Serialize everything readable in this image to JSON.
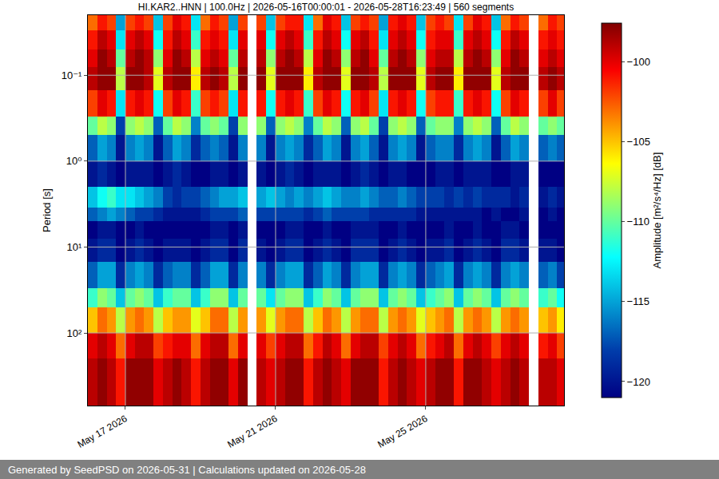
{
  "chart_data": {
    "type": "heatmap",
    "title": "HI.KAR2..HNN | 100.0Hz | 2026-05-16T00:00:01 - 2026-05-28T16:23:49 | 560 segments",
    "y_label": "Period [s]",
    "footer": "Generated by SeedPSD on 2026-05-31 | Calculations updated on 2026-05-28",
    "log": "y",
    "grid": true,
    "xlim": [
      "2026-05-16T00:00:01",
      "2026-05-28T16:23:49"
    ],
    "ylim": [
      700,
      0.02
    ],
    "xticks": [
      {
        "value": "2026-05-17",
        "label": "May 17 2026"
      },
      {
        "value": "2026-05-21",
        "label": "May 21 2026"
      },
      {
        "value": "2026-05-25",
        "label": "May 25 2026"
      }
    ],
    "yticks": [
      {
        "value": 0.1,
        "label": "10⁻¹"
      },
      {
        "value": 1,
        "label": "10⁰"
      },
      {
        "value": 10,
        "label": "10¹"
      },
      {
        "value": 100,
        "label": "10²"
      }
    ],
    "colorbar": {
      "title": "Amplitude [m²/s⁴/Hz] [dB]",
      "range": [
        -121,
        -97.6
      ],
      "ticks": [
        -120,
        -115,
        -110,
        -105,
        -100
      ]
    },
    "x_edges": [
      "2026-05-16 00:00",
      "2026-05-16 06:00",
      "2026-05-16 12:00",
      "2026-05-16 18:00",
      "2026-05-17 00:00",
      "2026-05-17 06:00",
      "2026-05-17 12:00",
      "2026-05-17 18:00",
      "2026-05-18 00:00",
      "2026-05-18 06:00",
      "2026-05-18 12:00",
      "2026-05-18 18:00",
      "2026-05-19 00:00",
      "2026-05-19 06:00",
      "2026-05-19 12:00",
      "2026-05-19 18:00",
      "2026-05-20 00:00",
      "2026-05-20 06:00",
      "2026-05-20 12:00",
      "2026-05-20 18:00",
      "2026-05-21 00:00",
      "2026-05-21 06:00",
      "2026-05-21 12:00",
      "2026-05-21 18:00",
      "2026-05-22 00:00",
      "2026-05-22 06:00",
      "2026-05-22 12:00",
      "2026-05-22 18:00",
      "2026-05-23 00:00",
      "2026-05-23 06:00",
      "2026-05-23 12:00",
      "2026-05-23 18:00",
      "2026-05-24 00:00",
      "2026-05-24 06:00",
      "2026-05-24 12:00",
      "2026-05-24 18:00",
      "2026-05-25 00:00",
      "2026-05-25 06:00",
      "2026-05-25 12:00",
      "2026-05-25 18:00",
      "2026-05-26 00:00",
      "2026-05-26 06:00",
      "2026-05-26 12:00",
      "2026-05-26 18:00",
      "2026-05-27 00:00",
      "2026-05-27 06:00",
      "2026-05-27 12:00",
      "2026-05-27 18:00",
      "2026-05-28 00:00",
      "2026-05-28 06:00",
      "2026-05-28 12:00",
      "2026-05-28 18:00"
    ],
    "y_edges": [
      0.02,
      0.03,
      0.05,
      0.08,
      0.15,
      0.3,
      0.5,
      1,
      2,
      3.5,
      5,
      8,
      15,
      30,
      50,
      100,
      200,
      700
    ],
    "z": [
      [
        -103,
        -101,
        -102,
        -115,
        -102,
        -101,
        -102,
        -114,
        -102,
        -100,
        -101,
        -113,
        -103,
        -101,
        -102,
        -115,
        -102,
        null,
        -102,
        -114,
        -102,
        -101,
        -101,
        -113,
        -103,
        -100,
        -101,
        -114,
        -102,
        -101,
        -102,
        -115,
        -101,
        -100,
        -101,
        -114,
        -102,
        -101,
        -102,
        -113,
        -102,
        -100,
        -101,
        -114,
        -103,
        -101,
        -102,
        null,
        -103,
        -101,
        -102
      ],
      [
        -101,
        -99,
        -100,
        -113,
        -100,
        -99,
        -100,
        -112,
        -101,
        -99,
        -100,
        -111,
        -101,
        -100,
        -101,
        -113,
        -100,
        null,
        -100,
        -112,
        -100,
        -99,
        -100,
        -111,
        -101,
        -99,
        -100,
        -112,
        -100,
        -99,
        -101,
        -113,
        -100,
        -99,
        -100,
        -112,
        -101,
        -100,
        -100,
        -111,
        -100,
        -99,
        -100,
        -112,
        -101,
        -99,
        -100,
        null,
        -101,
        -100,
        -101
      ],
      [
        -100,
        -98,
        -99,
        -110,
        -99,
        -98,
        -99,
        -109,
        -100,
        -98,
        -99,
        -108,
        -100,
        -99,
        -100,
        -110,
        -99,
        null,
        -99,
        -109,
        -99,
        -98,
        -99,
        -108,
        -100,
        -98,
        -99,
        -109,
        -99,
        -98,
        -100,
        -110,
        -99,
        -98,
        -99,
        -109,
        -100,
        -99,
        -99,
        -108,
        -99,
        -98,
        -99,
        -109,
        -100,
        -98,
        -99,
        null,
        -100,
        -99,
        -100
      ],
      [
        -99,
        -98,
        -98,
        -108,
        -98,
        -98,
        -99,
        -107,
        -99,
        -98,
        -98,
        -106,
        -99,
        -98,
        -99,
        -108,
        -98,
        null,
        -98,
        -107,
        -98,
        -98,
        -98,
        -106,
        -99,
        -98,
        -98,
        -107,
        -98,
        -98,
        -99,
        -108,
        -98,
        -98,
        -98,
        -107,
        -99,
        -98,
        -98,
        -106,
        -98,
        -98,
        -98,
        -107,
        -99,
        -98,
        -98,
        null,
        -99,
        -98,
        -99
      ],
      [
        -102,
        -100,
        -101,
        -113,
        -101,
        -100,
        -101,
        -112,
        -102,
        -100,
        -101,
        -111,
        -102,
        -101,
        -102,
        -113,
        -101,
        null,
        -101,
        -112,
        -101,
        -100,
        -101,
        -111,
        -102,
        -100,
        -101,
        -112,
        -101,
        -100,
        -102,
        -113,
        -101,
        -100,
        -101,
        -112,
        -102,
        -101,
        -101,
        -111,
        -101,
        -100,
        -101,
        -112,
        -102,
        -100,
        -101,
        null,
        -102,
        -100,
        -102
      ],
      [
        -110,
        -108,
        -109,
        -118,
        -109,
        -108,
        -109,
        -117,
        -110,
        -108,
        -109,
        -116,
        -110,
        -109,
        -110,
        -118,
        -109,
        null,
        -109,
        -117,
        -109,
        -108,
        -109,
        -116,
        -110,
        -108,
        -109,
        -117,
        -109,
        -108,
        -110,
        -118,
        -109,
        -108,
        -109,
        -117,
        -110,
        -109,
        -109,
        -116,
        -109,
        -108,
        -109,
        -117,
        -110,
        -108,
        -109,
        null,
        -110,
        -109,
        -110
      ],
      [
        -117,
        -115,
        -116,
        -120,
        -116,
        -115,
        -116,
        -120,
        -117,
        -115,
        -116,
        -119,
        -117,
        -116,
        -117,
        -120,
        -116,
        null,
        -116,
        -120,
        -116,
        -115,
        -116,
        -119,
        -117,
        -115,
        -116,
        -120,
        -116,
        -115,
        -117,
        -120,
        -116,
        -115,
        -116,
        -120,
        -117,
        -116,
        -116,
        -119,
        -116,
        -115,
        -116,
        -120,
        -117,
        -115,
        -116,
        null,
        -117,
        -116,
        -117
      ],
      [
        -120,
        -119,
        -120,
        -121,
        -120,
        -120,
        -120,
        -121,
        -120,
        -119,
        -120,
        -121,
        -121,
        -120,
        -120,
        -121,
        -120,
        null,
        -120,
        -121,
        -120,
        -119,
        -120,
        -121,
        -120,
        -120,
        -120,
        -121,
        -120,
        -119,
        -120,
        -121,
        -120,
        -120,
        -121,
        -121,
        -121,
        -120,
        -120,
        -121,
        -120,
        -120,
        -120,
        -121,
        -121,
        -120,
        -120,
        null,
        -121,
        -121,
        -121
      ],
      [
        -114,
        -112,
        -111,
        -113,
        -113,
        -114,
        -115,
        -116,
        -118,
        -119,
        -118,
        -118,
        -117,
        -116,
        -115,
        -115,
        -114,
        null,
        -115,
        -114,
        -115,
        -116,
        -115,
        -116,
        -115,
        -114,
        -115,
        -116,
        -116,
        -115,
        -116,
        -117,
        -117,
        -116,
        -117,
        -118,
        -118,
        -118,
        -119,
        -118,
        -119,
        -118,
        -119,
        -119,
        -119,
        -120,
        -119,
        null,
        -120,
        -119,
        -120
      ],
      [
        -117,
        -116,
        -115,
        -116,
        -117,
        -118,
        -118,
        -119,
        -120,
        -120,
        -120,
        -120,
        -119,
        -118,
        -118,
        -118,
        -117,
        null,
        -118,
        -118,
        -118,
        -118,
        -118,
        -119,
        -118,
        -117,
        -118,
        -118,
        -118,
        -118,
        -119,
        -119,
        -119,
        -119,
        -119,
        -120,
        -120,
        -120,
        -120,
        -120,
        -120,
        -120,
        -121,
        -120,
        -121,
        -121,
        -120,
        null,
        -121,
        -120,
        -121
      ],
      [
        -121,
        -120,
        -120,
        -121,
        -121,
        -120,
        -121,
        -121,
        -121,
        -121,
        -121,
        -121,
        -121,
        -120,
        -120,
        -121,
        -120,
        null,
        -121,
        -121,
        -121,
        -120,
        -120,
        -121,
        -121,
        -120,
        -121,
        -121,
        -120,
        -120,
        -120,
        -121,
        -121,
        -120,
        -121,
        -121,
        -121,
        -121,
        -120,
        -121,
        -121,
        -120,
        -121,
        -121,
        -120,
        -120,
        -121,
        null,
        -121,
        -121,
        -121
      ],
      [
        -120,
        -119,
        -119,
        -121,
        -120,
        -119,
        -120,
        -121,
        -120,
        -120,
        -120,
        -121,
        -120,
        -119,
        -119,
        -121,
        -119,
        null,
        -120,
        -121,
        -120,
        -119,
        -119,
        -121,
        -120,
        -119,
        -120,
        -121,
        -119,
        -119,
        -119,
        -121,
        -120,
        -119,
        -120,
        -121,
        -120,
        -120,
        -119,
        -121,
        -120,
        -119,
        -120,
        -121,
        -119,
        -119,
        -120,
        null,
        -120,
        -120,
        -121
      ],
      [
        -117,
        -115,
        -115,
        -119,
        -116,
        -115,
        -116,
        -119,
        -117,
        -116,
        -116,
        -119,
        -117,
        -115,
        -115,
        -119,
        -116,
        null,
        -116,
        -119,
        -116,
        -115,
        -115,
        -119,
        -117,
        -115,
        -116,
        -119,
        -116,
        -115,
        -115,
        -119,
        -116,
        -115,
        -116,
        -119,
        -117,
        -116,
        -115,
        -119,
        -116,
        -115,
        -116,
        -119,
        -116,
        -115,
        -116,
        null,
        -117,
        -116,
        -118
      ],
      [
        -111,
        -109,
        -110,
        -114,
        -110,
        -109,
        -110,
        -114,
        -111,
        -110,
        -110,
        -114,
        -111,
        -109,
        -109,
        -114,
        -110,
        null,
        -110,
        -113,
        -110,
        -109,
        -109,
        -114,
        -111,
        -109,
        -110,
        -114,
        -110,
        -109,
        -109,
        -114,
        -110,
        -109,
        -110,
        -114,
        -111,
        -110,
        -109,
        -114,
        -110,
        -109,
        -110,
        -114,
        -110,
        -109,
        -110,
        null,
        -111,
        -110,
        -112
      ],
      [
        -105,
        -103,
        -104,
        -108,
        -104,
        -103,
        -104,
        -108,
        -105,
        -104,
        -104,
        -107,
        -105,
        -103,
        -103,
        -108,
        -104,
        null,
        -104,
        -107,
        -104,
        -103,
        -103,
        -108,
        -105,
        -103,
        -104,
        -108,
        -104,
        -103,
        -103,
        -108,
        -104,
        -103,
        -104,
        -107,
        -105,
        -104,
        -103,
        -108,
        -104,
        -103,
        -104,
        -108,
        -104,
        -103,
        -104,
        null,
        -105,
        -104,
        -106
      ],
      [
        -100,
        -99,
        -100,
        -103,
        -100,
        -99,
        -99,
        -102,
        -101,
        -100,
        -100,
        -103,
        -100,
        -99,
        -99,
        -103,
        -100,
        null,
        -100,
        -102,
        -100,
        -99,
        -99,
        -103,
        -101,
        -99,
        -100,
        -103,
        -100,
        -99,
        -99,
        -102,
        -100,
        -99,
        -100,
        -103,
        -101,
        -100,
        -99,
        -103,
        -100,
        -99,
        -100,
        -102,
        -100,
        -99,
        -100,
        null,
        -101,
        -100,
        -102
      ],
      [
        -99,
        -98,
        -99,
        -101,
        -98,
        -98,
        -98,
        -100,
        -99,
        -98,
        -99,
        -101,
        -99,
        -98,
        -98,
        -100,
        -98,
        null,
        -99,
        -100,
        -99,
        -98,
        -98,
        -101,
        -99,
        -98,
        -99,
        -100,
        -98,
        -98,
        -98,
        -101,
        -99,
        -98,
        -99,
        -100,
        -99,
        -98,
        -98,
        -101,
        -98,
        -98,
        -99,
        -100,
        -99,
        -98,
        -99,
        null,
        -99,
        -99,
        -100
      ]
    ]
  }
}
